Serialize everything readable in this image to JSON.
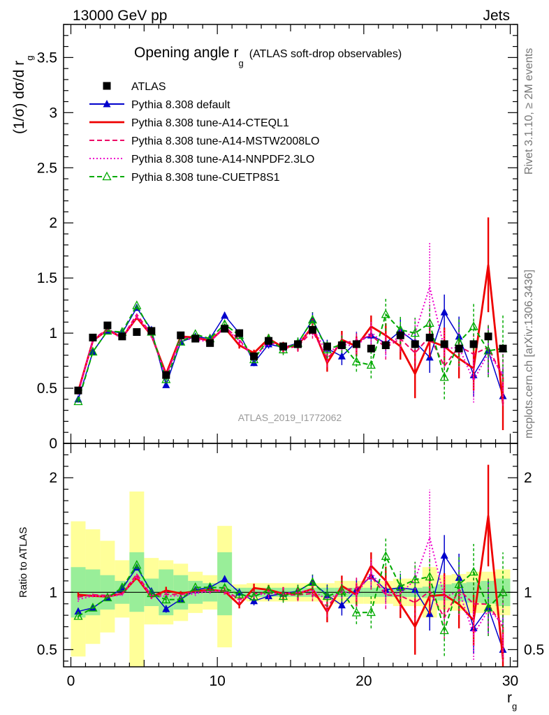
{
  "header": {
    "left": "13000 GeV pp",
    "right": "Jets"
  },
  "side_labels": {
    "rivet": "Rivet 3.1.10, ≥ 2M events",
    "mcplots": "mcplots.cern.ch [arXiv:1306.3436]"
  },
  "watermark": "ATLAS_2019_I1772062",
  "chart_data": [
    {
      "type": "line",
      "panel": "main",
      "title": "Opening angle r",
      "title_sub": "g",
      "title_suffix": "(ATLAS soft-drop observables)",
      "ylabel": "(1/σ) dσ/d r",
      "ylabel_sub": "g",
      "xlim": [
        -0.5,
        30.5
      ],
      "ylim": [
        0,
        3.8
      ],
      "yticks": [
        0,
        0.5,
        1,
        1.5,
        2,
        2.5,
        3,
        3.5
      ],
      "ytick_labels": [
        "0",
        "0.5",
        "1",
        "1.5",
        "2",
        "2.5",
        "3",
        "3.5"
      ],
      "legend_position": "top-left",
      "x": [
        0.5,
        1.5,
        2.5,
        3.5,
        4.5,
        5.5,
        6.5,
        7.5,
        8.5,
        9.5,
        10.5,
        11.5,
        12.5,
        13.5,
        14.5,
        15.5,
        16.5,
        17.5,
        18.5,
        19.5,
        20.5,
        21.5,
        22.5,
        23.5,
        24.5,
        25.5,
        26.5,
        27.5,
        28.5,
        29.5
      ],
      "series": [
        {
          "name": "ATLAS",
          "color": "#000000",
          "style": "data",
          "values": [
            0.48,
            0.96,
            1.07,
            0.97,
            1.01,
            1.02,
            0.62,
            0.98,
            0.95,
            0.91,
            1.04,
            1.0,
            0.79,
            0.93,
            0.88,
            0.9,
            1.03,
            0.88,
            0.89,
            0.9,
            0.86,
            0.89,
            0.98,
            0.9,
            0.96,
            0.9,
            0.86,
            0.9,
            0.97,
            0.86
          ]
        },
        {
          "name": "Pythia 8.308 default",
          "color": "#0000cc",
          "style": "solid",
          "marker": "triangle",
          "values": [
            0.4,
            0.83,
            1.02,
            1.0,
            1.23,
            1.03,
            0.53,
            0.92,
            0.97,
            0.95,
            1.16,
            1.0,
            0.73,
            0.9,
            0.87,
            0.91,
            1.12,
            0.86,
            0.79,
            0.92,
            0.98,
            0.91,
            1.02,
            0.92,
            0.78,
            1.19,
            0.97,
            0.62,
            0.84,
            0.43
          ],
          "err": [
            0.01,
            0.01,
            0.01,
            0.01,
            0.02,
            0.02,
            0.02,
            0.02,
            0.02,
            0.02,
            0.03,
            0.03,
            0.03,
            0.04,
            0.05,
            0.05,
            0.07,
            0.08,
            0.08,
            0.09,
            0.1,
            0.11,
            0.12,
            0.13,
            0.14,
            0.16,
            0.18,
            0.2,
            0.22,
            0.26
          ]
        },
        {
          "name": "Pythia 8.308 tune-A14-CTEQL1",
          "color": "#ee0000",
          "style": "thick",
          "values": [
            0.47,
            0.93,
            1.03,
            0.96,
            1.14,
            0.98,
            0.63,
            0.97,
            0.96,
            0.93,
            1.05,
            0.89,
            0.82,
            0.95,
            0.87,
            0.89,
            1.06,
            0.73,
            0.94,
            0.88,
            1.06,
            0.98,
            0.88,
            0.63,
            0.93,
            0.88,
            0.77,
            0.68,
            1.62,
            0.36
          ],
          "err": [
            0.01,
            0.01,
            0.01,
            0.01,
            0.02,
            0.02,
            0.02,
            0.02,
            0.02,
            0.02,
            0.03,
            0.03,
            0.03,
            0.04,
            0.05,
            0.05,
            0.07,
            0.08,
            0.08,
            0.09,
            0.1,
            0.11,
            0.12,
            0.22,
            0.15,
            0.17,
            0.18,
            0.2,
            0.43,
            0.24
          ]
        },
        {
          "name": "Pythia 8.308 tune-A14-MSTW2008LO",
          "color": "#ee0066",
          "style": "dashed",
          "values": [
            0.46,
            0.94,
            1.04,
            0.96,
            1.17,
            0.99,
            0.61,
            0.96,
            0.96,
            0.92,
            1.06,
            0.94,
            0.78,
            0.93,
            0.86,
            0.88,
            1.02,
            0.77,
            0.91,
            0.93,
            0.98,
            0.87,
            0.95,
            0.82,
            0.97,
            0.7,
            0.88,
            0.81,
            0.87,
            0.6
          ],
          "err": [
            0.01,
            0.01,
            0.01,
            0.01,
            0.02,
            0.02,
            0.02,
            0.02,
            0.02,
            0.02,
            0.03,
            0.03,
            0.03,
            0.04,
            0.05,
            0.05,
            0.07,
            0.08,
            0.08,
            0.09,
            0.1,
            0.11,
            0.12,
            0.14,
            0.15,
            0.17,
            0.18,
            0.2,
            0.22,
            0.26
          ]
        },
        {
          "name": "Pythia 8.308 tune-A14-NNPDF2.3LO",
          "color": "#ee00cc",
          "style": "dotted",
          "values": [
            0.45,
            0.93,
            1.03,
            0.95,
            1.15,
            0.98,
            0.6,
            0.95,
            0.94,
            0.92,
            1.05,
            0.93,
            0.77,
            0.92,
            0.87,
            0.9,
            1.05,
            0.82,
            0.9,
            0.88,
            1.01,
            0.89,
            0.97,
            1.0,
            1.42,
            0.86,
            0.87,
            0.57,
            0.82,
            0.63
          ],
          "err": [
            0.01,
            0.01,
            0.01,
            0.01,
            0.02,
            0.02,
            0.02,
            0.02,
            0.02,
            0.02,
            0.03,
            0.03,
            0.03,
            0.04,
            0.05,
            0.05,
            0.07,
            0.08,
            0.08,
            0.09,
            0.1,
            0.11,
            0.12,
            0.14,
            0.4,
            0.17,
            0.18,
            0.2,
            0.22,
            0.26
          ]
        },
        {
          "name": "Pythia 8.308 tune-CUETP8S1",
          "color": "#00aa00",
          "style": "dashed",
          "marker": "open-triangle",
          "values": [
            0.38,
            0.83,
            1.02,
            1.01,
            1.25,
            1.01,
            0.58,
            0.92,
            0.99,
            0.95,
            1.08,
            0.98,
            0.76,
            0.95,
            0.85,
            0.91,
            1.12,
            0.85,
            0.9,
            0.74,
            0.71,
            1.17,
            1.03,
            1.0,
            1.09,
            0.6,
            0.92,
            1.06,
            0.84,
            0.86
          ],
          "err": [
            0.01,
            0.01,
            0.01,
            0.01,
            0.02,
            0.02,
            0.02,
            0.02,
            0.02,
            0.02,
            0.03,
            0.03,
            0.03,
            0.04,
            0.05,
            0.05,
            0.07,
            0.08,
            0.08,
            0.09,
            0.12,
            0.15,
            0.13,
            0.14,
            0.16,
            0.2,
            0.22,
            0.22,
            0.24,
            0.3
          ]
        }
      ]
    },
    {
      "type": "line",
      "panel": "ratio",
      "ylabel": "Ratio to ATLAS",
      "xlabel": "r",
      "xlabel_sub": "g",
      "xlim": [
        -0.5,
        30.5
      ],
      "ylim": [
        0.35,
        2.3
      ],
      "xticks": [
        0,
        10,
        20,
        30
      ],
      "xtick_labels": [
        "0",
        "10",
        "20",
        "30"
      ],
      "yticks": [
        0.5,
        1,
        2
      ],
      "ytick_labels": [
        "0.5",
        "1",
        "2"
      ],
      "band_inner": [
        [
          0.78,
          1.22
        ],
        [
          0.8,
          1.2
        ],
        [
          0.85,
          1.15
        ],
        [
          0.9,
          1.1
        ],
        [
          0.83,
          1.35
        ],
        [
          0.88,
          1.12
        ],
        [
          0.8,
          1.2
        ],
        [
          0.85,
          1.15
        ],
        [
          0.9,
          1.1
        ],
        [
          0.92,
          1.08
        ],
        [
          0.8,
          1.35
        ],
        [
          0.96,
          1.04
        ],
        [
          0.96,
          1.04
        ],
        [
          0.96,
          1.04
        ],
        [
          0.96,
          1.04
        ],
        [
          0.96,
          1.04
        ],
        [
          0.96,
          1.04
        ],
        [
          0.96,
          1.04
        ],
        [
          0.96,
          1.04
        ],
        [
          0.96,
          1.04
        ],
        [
          0.96,
          1.04
        ],
        [
          0.96,
          1.04
        ],
        [
          0.96,
          1.04
        ],
        [
          0.96,
          1.04
        ],
        [
          0.95,
          1.05
        ],
        [
          0.93,
          1.07
        ],
        [
          0.92,
          1.08
        ],
        [
          0.91,
          1.09
        ],
        [
          0.9,
          1.1
        ],
        [
          0.88,
          1.12
        ]
      ],
      "band_outer": [
        [
          0.44,
          1.62
        ],
        [
          0.55,
          1.55
        ],
        [
          0.65,
          1.45
        ],
        [
          0.78,
          1.28
        ],
        [
          0.3,
          1.88
        ],
        [
          0.72,
          1.3
        ],
        [
          0.72,
          1.28
        ],
        [
          0.75,
          1.25
        ],
        [
          0.82,
          1.18
        ],
        [
          0.85,
          1.15
        ],
        [
          0.52,
          1.58
        ],
        [
          0.93,
          1.07
        ],
        [
          0.92,
          1.08
        ],
        [
          0.92,
          1.08
        ],
        [
          0.92,
          1.08
        ],
        [
          0.92,
          1.08
        ],
        [
          0.92,
          1.08
        ],
        [
          0.92,
          1.08
        ],
        [
          0.9,
          1.1
        ],
        [
          0.9,
          1.1
        ],
        [
          0.9,
          1.1
        ],
        [
          0.9,
          1.1
        ],
        [
          0.88,
          1.12
        ],
        [
          0.88,
          1.12
        ],
        [
          0.78,
          1.22
        ],
        [
          0.85,
          1.15
        ],
        [
          0.84,
          1.16
        ],
        [
          0.82,
          1.18
        ],
        [
          0.82,
          1.18
        ],
        [
          0.8,
          1.2
        ]
      ]
    }
  ]
}
